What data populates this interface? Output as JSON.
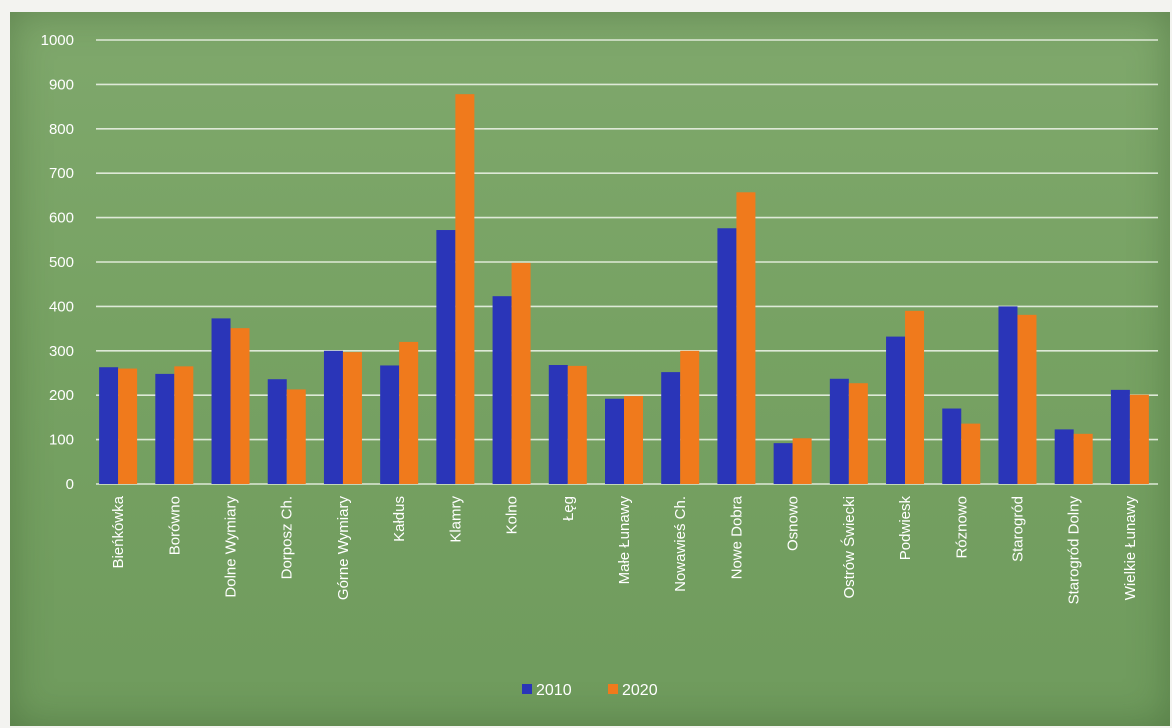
{
  "chart_data": {
    "type": "bar",
    "categories": [
      "Bieńkówka",
      "Borówno",
      "Dolne Wymiary",
      "Dorposz Ch.",
      "Górne Wymiary",
      "Kałdus",
      "Klamry",
      "Kolno",
      "Łęg",
      "Małe Łunawy",
      "Nowawieś Ch.",
      "Nowe Dobra",
      "Osnowo",
      "Ostrów Świecki",
      "Podwiesk",
      "Róznowo",
      "Starogród",
      "Starogród Dolny",
      "Wielkie Łunawy"
    ],
    "series": [
      {
        "name": "2010",
        "color": "#2a35b8",
        "values": [
          263,
          248,
          373,
          236,
          300,
          267,
          572,
          423,
          268,
          192,
          252,
          576,
          92,
          237,
          332,
          170,
          400,
          123,
          212
        ]
      },
      {
        "name": "2020",
        "color": "#f07a1c",
        "values": [
          260,
          265,
          351,
          213,
          297,
          320,
          878,
          498,
          266,
          198,
          300,
          657,
          103,
          227,
          390,
          136,
          381,
          113,
          201
        ]
      }
    ],
    "yticks": [
      "0",
      "100",
      "200",
      "300",
      "400",
      "500",
      "600",
      "700",
      "800",
      "900",
      "1000"
    ],
    "ylim": [
      0,
      1000
    ],
    "grid": true,
    "legend_position": "bottom",
    "title": "",
    "xlabel": "",
    "ylabel": ""
  }
}
